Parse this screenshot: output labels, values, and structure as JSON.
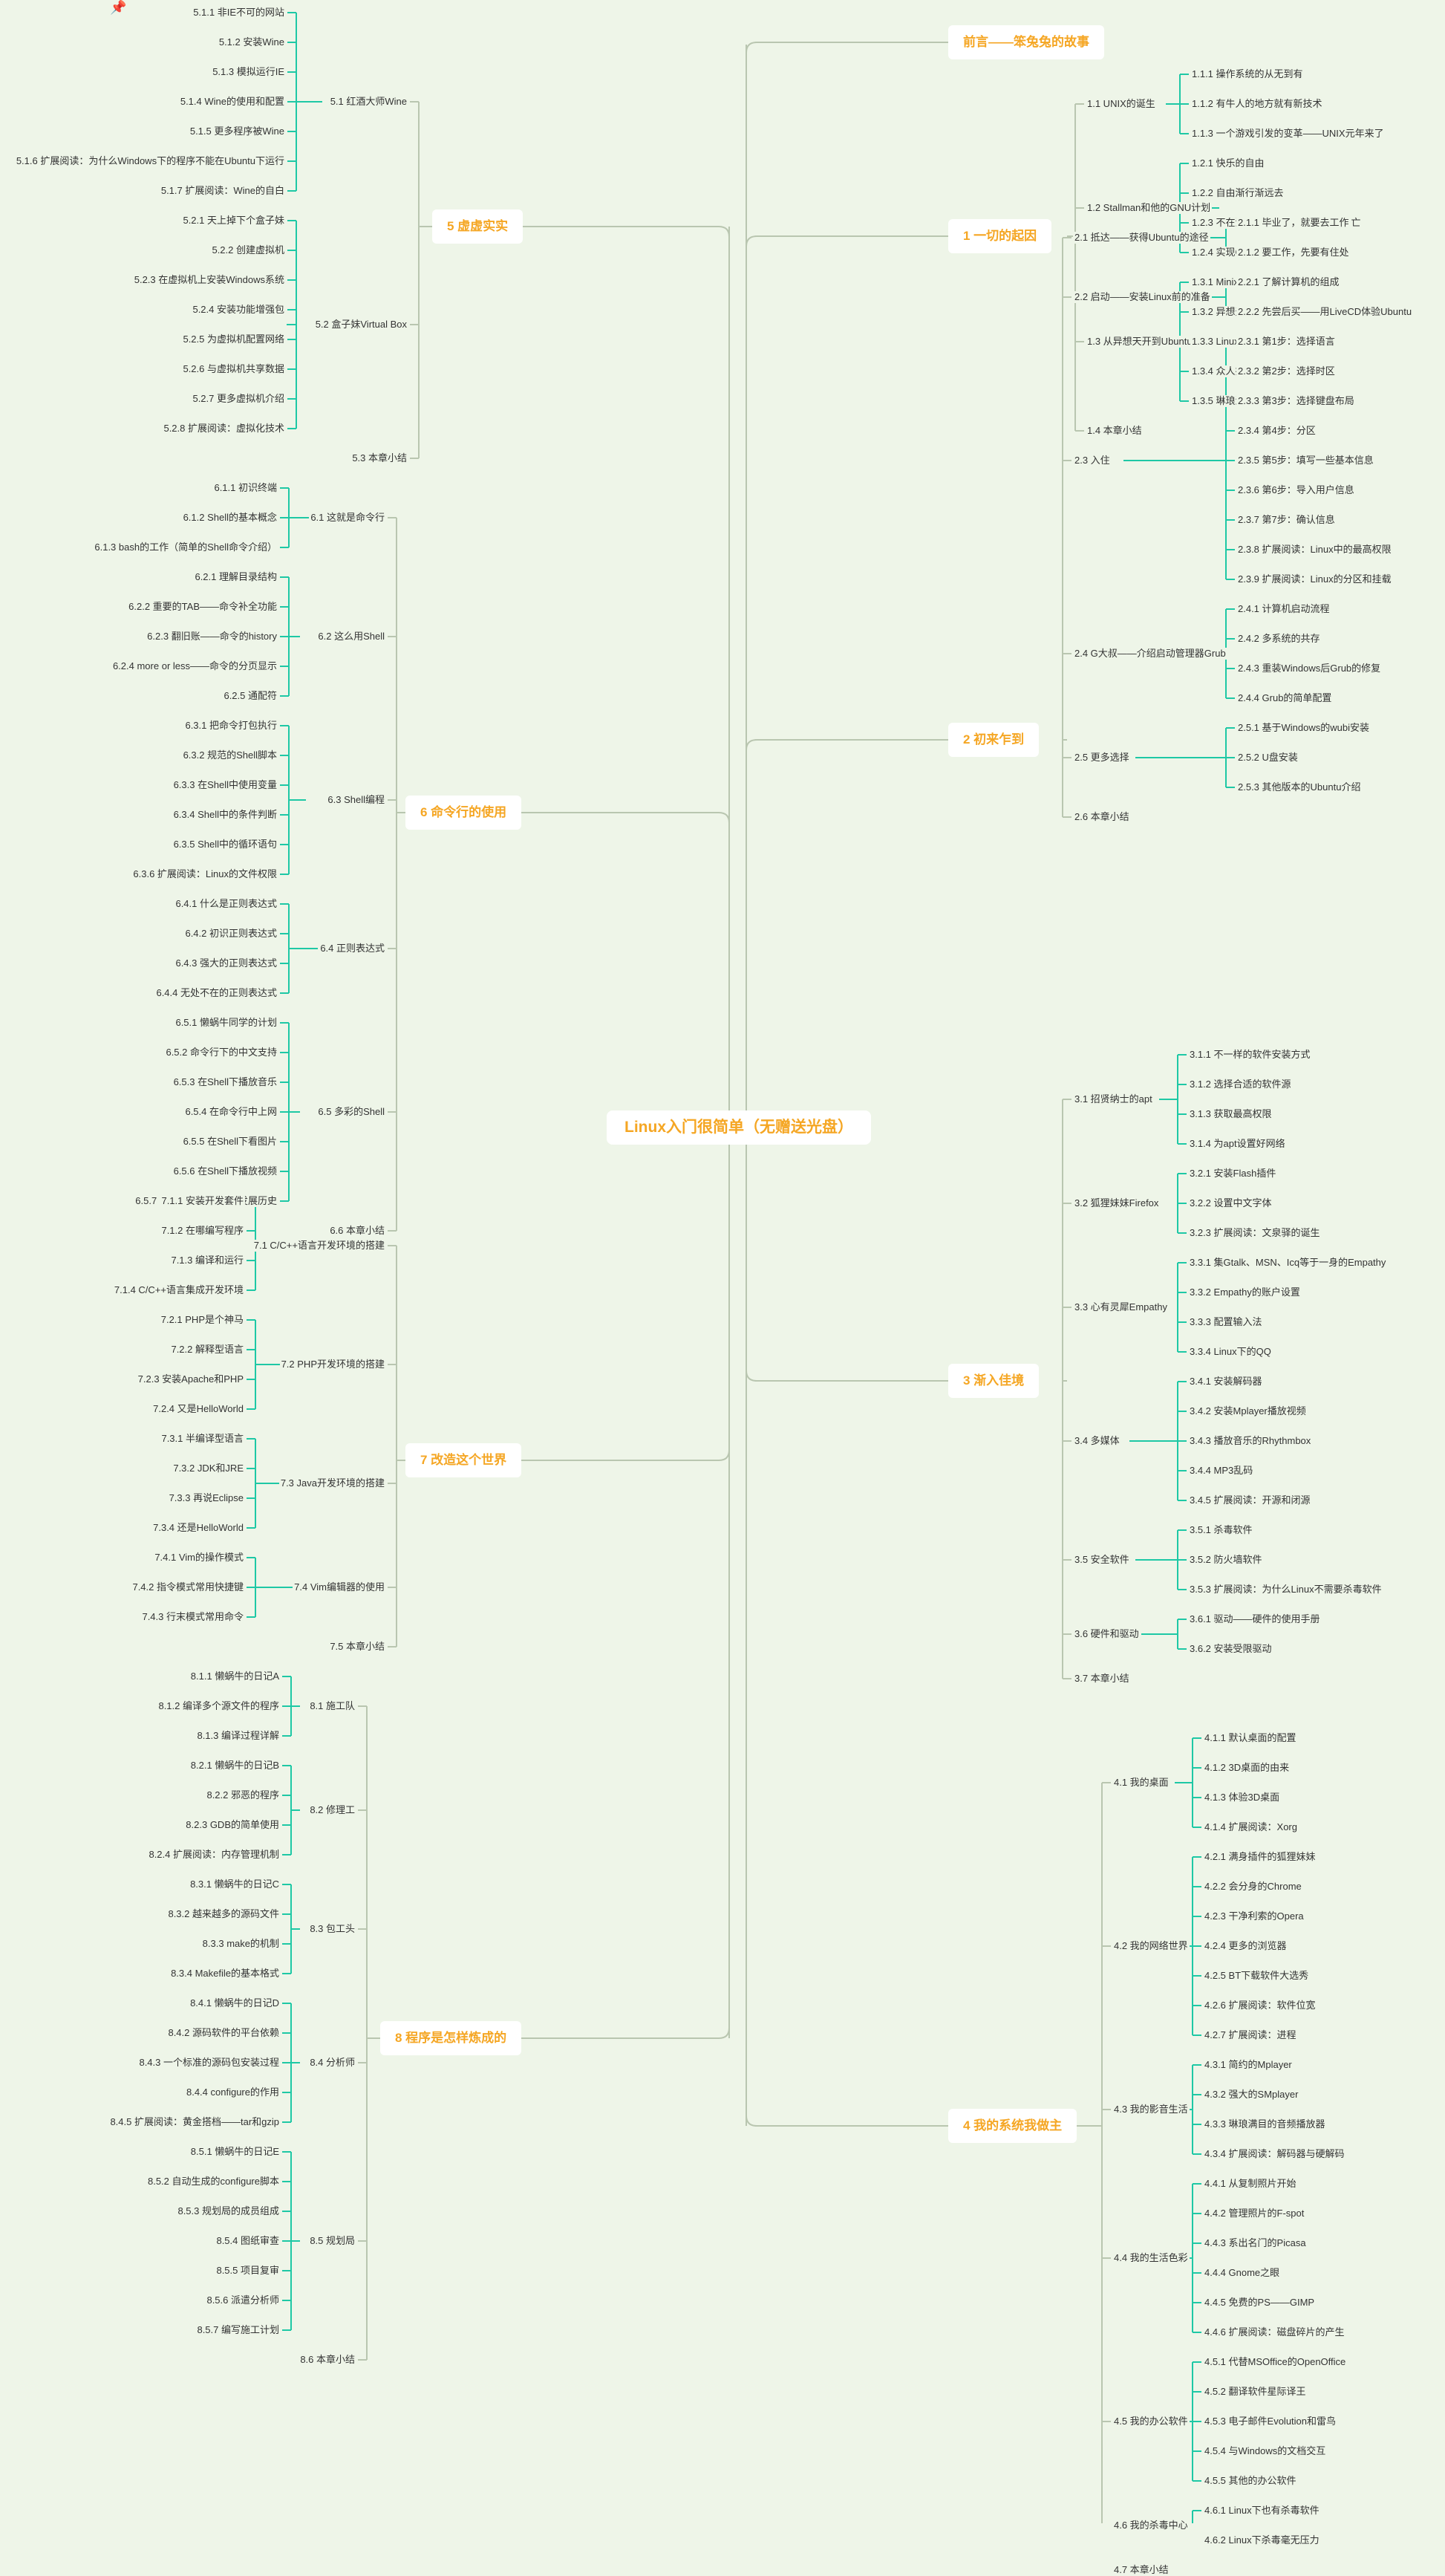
{
  "main_title": "Linux入门很简单（无赠送光盘）",
  "colors": {
    "line_main": "#b9c6b0",
    "branch": "#1ec8a5",
    "label": "#f5a623",
    "text": "#333333"
  },
  "icons": {
    "pin": "pushpin-icon"
  },
  "branches": [
    {
      "label": "前言——笨兔兔的故事",
      "side": "right",
      "children": []
    },
    {
      "label": "1 一切的起因",
      "side": "right",
      "children": [
        {
          "label": "1.1 UNIX的诞生",
          "children": [
            "1.1.1 操作系统的从无到有",
            "1.1.2 有牛人的地方就有新技术",
            "1.1.3 一个游戏引发的变革——UNIX元年来了"
          ]
        },
        {
          "label": "1.2 Stallman和他的GNU计划",
          "children": [
            "1.2.1 快乐的自由",
            "1.2.2 自由渐行渐远去",
            "1.2.3 不在沉默中爆发，就在沉默中灭亡",
            "1.2.4 实现GNU梦想"
          ]
        },
        {
          "label": "1.3 从异想天开到Ubuntu",
          "children": [
            "1.3.1 Minix",
            "1.3.2 异想天开的FREAX",
            "1.3.3 Linux的由来",
            "1.3.4 众人拾柴造就Linux",
            "1.3.5 琳琅满目的Linux"
          ]
        },
        {
          "label": "1.4 本章小结",
          "children": []
        }
      ]
    },
    {
      "label": "2 初来乍到",
      "side": "right",
      "children": [
        {
          "label": "2.1 抵达——获得Ubuntu的途径",
          "children": [
            "2.1.1 毕业了，就要去工作",
            "2.1.2 要工作，先要有住处"
          ]
        },
        {
          "label": "2.2 启动——安装Linux前的准备",
          "children": [
            "2.2.1 了解计算机的组成",
            "2.2.2 先尝后买——用LiveCD体验Ubuntu"
          ]
        },
        {
          "label": "2.3 入住",
          "children": [
            "2.3.1 第1步：选择语言",
            "2.3.2 第2步：选择时区",
            "2.3.3 第3步：选择键盘布局",
            "2.3.4 第4步：分区",
            "2.3.5 第5步：填写一些基本信息",
            "2.3.6 第6步：导入用户信息",
            "2.3.7 第7步：确认信息",
            "2.3.8 扩展阅读：Linux中的最高权限",
            "2.3.9 扩展阅读：Linux的分区和挂载"
          ]
        },
        {
          "label": "2.4 G大叔——介绍启动管理器Grub",
          "children": [
            "2.4.1 计算机启动流程",
            "2.4.2 多系统的共存",
            "2.4.3 重装Windows后Grub的修复",
            "2.4.4 Grub的简单配置"
          ]
        },
        {
          "label": "2.5 更多选择",
          "children": [
            "2.5.1 基于Windows的wubi安装",
            "2.5.2 U盘安装",
            "2.5.3 其他版本的Ubuntu介绍"
          ]
        },
        {
          "label": "2.6 本章小结",
          "children": []
        }
      ]
    },
    {
      "label": "3 渐入佳境",
      "side": "right",
      "children": [
        {
          "label": "3.1 招贤纳士的apt",
          "children": [
            "3.1.1 不一样的软件安装方式",
            "3.1.2 选择合适的软件源",
            "3.1.3 获取最高权限",
            "3.1.4 为apt设置好网络"
          ]
        },
        {
          "label": "3.2 狐狸妹妹Firefox",
          "children": [
            "3.2.1 安装Flash插件",
            "3.2.2 设置中文字体",
            "3.2.3 扩展阅读：文泉驿的诞生"
          ]
        },
        {
          "label": "3.3 心有灵犀Empathy",
          "children": [
            "3.3.1 集Gtalk、MSN、Icq等于一身的Empathy",
            "3.3.2 Empathy的账户设置",
            "3.3.3 配置输入法",
            "3.3.4 Linux下的QQ"
          ]
        },
        {
          "label": "3.4 多媒体",
          "children": [
            "3.4.1 安装解码器",
            "3.4.2 安装Mplayer播放视频",
            "3.4.3 播放音乐的Rhythmbox",
            "3.4.4 MP3乱码",
            "3.4.5 扩展阅读：开源和闭源"
          ]
        },
        {
          "label": "3.5 安全软件",
          "children": [
            "3.5.1 杀毒软件",
            "3.5.2 防火墙软件",
            "3.5.3 扩展阅读：为什么Linux不需要杀毒软件"
          ]
        },
        {
          "label": "3.6 硬件和驱动",
          "children": [
            "3.6.1 驱动——硬件的使用手册",
            "3.6.2 安装受限驱动"
          ]
        },
        {
          "label": "3.7 本章小结",
          "children": []
        }
      ]
    },
    {
      "label": "4 我的系统我做主",
      "side": "right",
      "children": [
        {
          "label": "4.1 我的桌面",
          "children": [
            "4.1.1 默认桌面的配置",
            "4.1.2 3D桌面的由来",
            "4.1.3 体验3D桌面",
            "4.1.4 扩展阅读：Xorg"
          ]
        },
        {
          "label": "4.2 我的网络世界",
          "children": [
            "4.2.1 满身插件的狐狸妹妹",
            "4.2.2 会分身的Chrome",
            "4.2.3 干净利索的Opera",
            "4.2.4 更多的浏览器",
            "4.2.5 BT下载软件大选秀",
            "4.2.6 扩展阅读：软件位宽",
            "4.2.7 扩展阅读：进程"
          ]
        },
        {
          "label": "4.3 我的影音生活",
          "children": [
            "4.3.1 简约的Mplayer",
            "4.3.2 强大的SMplayer",
            "4.3.3 琳琅满目的音频播放器",
            "4.3.4 扩展阅读：解码器与硬解码"
          ]
        },
        {
          "label": "4.4 我的生活色彩",
          "children": [
            "4.4.1 从复制照片开始",
            "4.4.2 管理照片的F-spot",
            "4.4.3 系出名门的Picasa",
            "4.4.4 Gnome之眼",
            "4.4.5 免费的PS——GIMP",
            "4.4.6 扩展阅读：磁盘碎片的产生"
          ]
        },
        {
          "label": "4.5 我的办公软件",
          "children": [
            "4.5.1 代替MSOffice的OpenOffice",
            "4.5.2 翻译软件星际译王",
            "4.5.3 电子邮件Evolution和雷鸟",
            "4.5.4 与Windows的文档交互",
            "4.5.5 其他的办公软件"
          ]
        },
        {
          "label": "4.6 我的杀毒中心",
          "children": [
            "4.6.1 Linux下也有杀毒软件",
            "4.6.2 Linux下杀毒毫无压力"
          ]
        },
        {
          "label": "4.7 本章小结",
          "children": []
        }
      ]
    },
    {
      "label": "5 虚虚实实",
      "side": "left",
      "children": [
        {
          "label": "5.1 红酒大师Wine",
          "children": [
            "5.1.1 非IE不可的网站",
            "5.1.2 安装Wine",
            "5.1.3 模拟运行IE",
            "5.1.4 Wine的使用和配置",
            "5.1.5 更多程序被Wine",
            "5.1.6 扩展阅读：为什么Windows下的程序不能在Ubuntu下运行",
            "5.1.7 扩展阅读：Wine的自白"
          ]
        },
        {
          "label": "5.2 盒子妹Virtual Box",
          "children": [
            "5.2.1 天上掉下个盒子妹",
            "5.2.2 创建虚拟机",
            "5.2.3 在虚拟机上安装Windows系统",
            "5.2.4 安装功能增强包",
            "5.2.5 为虚拟机配置网络",
            "5.2.6 与虚拟机共享数据",
            "5.2.7 更多虚拟机介绍",
            "5.2.8 扩展阅读：虚拟化技术"
          ]
        },
        {
          "label": "5.3 本章小结",
          "children": []
        }
      ]
    },
    {
      "label": "6 命令行的使用",
      "side": "left",
      "children": [
        {
          "label": "6.1 这就是命令行",
          "children": [
            "6.1.1 初识终端",
            "6.1.2 Shell的基本概念",
            "6.1.3 bash的工作（简单的Shell命令介绍）"
          ]
        },
        {
          "label": "6.2 这么用Shell",
          "children": [
            "6.2.1 理解目录结构",
            "6.2.2 重要的TAB——命令补全功能",
            "6.2.3 翻旧账——命令的history",
            "6.2.4 more or less——命令的分页显示",
            "6.2.5 通配符"
          ]
        },
        {
          "label": "6.3 Shell编程",
          "children": [
            "6.3.1 把命令打包执行",
            "6.3.2 规范的Shell脚本",
            "6.3.3 在Shell中使用变量",
            "6.3.4 Shell中的条件判断",
            "6.3.5 Shell中的循环语句",
            "6.3.6 扩展阅读：Linux的文件权限"
          ]
        },
        {
          "label": "6.4 正则表达式",
          "children": [
            "6.4.1 什么是正则表达式",
            "6.4.2 初识正则表达式",
            "6.4.3 强大的正则表达式",
            "6.4.4 无处不在的正则表达式"
          ]
        },
        {
          "label": "6.5 多彩的Shell",
          "children": [
            "6.5.1 懒蜗牛同学的计划",
            "6.5.2 命令行下的中文支持",
            "6.5.3 在Shell下播放音乐",
            "6.5.4 在命令行中上网",
            "6.5.5 在Shell下看图片",
            "6.5.6 在Shell下播放视频",
            "6.5.7 扩展阅读：bash的发展历史"
          ]
        },
        {
          "label": "6.6 本章小结",
          "children": []
        }
      ]
    },
    {
      "label": "7 改造这个世界",
      "side": "left",
      "children": [
        {
          "label": "7.1 C/C++语言开发环境的搭建",
          "children": [
            "7.1.1 安装开发套件",
            "7.1.2 在哪编写程序",
            "7.1.3 编译和运行",
            "7.1.4 C/C++语言集成开发环境"
          ]
        },
        {
          "label": "7.2 PHP开发环境的搭建",
          "children": [
            "7.2.1 PHP是个神马",
            "7.2.2 解释型语言",
            "7.2.3 安装Apache和PHP",
            "7.2.4 又是HelloWorld"
          ]
        },
        {
          "label": "7.3 Java开发环境的搭建",
          "children": [
            "7.3.1 半编译型语言",
            "7.3.2 JDK和JRE",
            "7.3.3 再说Eclipse",
            "7.3.4 还是HelloWorld"
          ]
        },
        {
          "label": "7.4 Vim编辑器的使用",
          "children": [
            "7.4.1 Vim的操作模式",
            "7.4.2 指令模式常用快捷键",
            "7.4.3 行末模式常用命令"
          ]
        },
        {
          "label": "7.5 本章小结",
          "children": []
        }
      ]
    },
    {
      "label": "8 程序是怎样炼成的",
      "side": "left",
      "children": [
        {
          "label": "8.1 施工队",
          "children": [
            "8.1.1 懒蜗牛的日记A",
            "8.1.2 编译多个源文件的程序",
            "8.1.3 编译过程详解"
          ]
        },
        {
          "label": "8.2 修理工",
          "children": [
            "8.2.1 懒蜗牛的日记B",
            "8.2.2 邪恶的程序",
            "8.2.3 GDB的简单使用",
            "8.2.4 扩展阅读：内存管理机制"
          ]
        },
        {
          "label": "8.3 包工头",
          "children": [
            "8.3.1 懒蜗牛的日记C",
            "8.3.2 越来越多的源码文件",
            "8.3.3 make的机制",
            "8.3.4 Makefile的基本格式"
          ]
        },
        {
          "label": "8.4 分析师",
          "children": [
            "8.4.1 懒蜗牛的日记D",
            "8.4.2 源码软件的平台依赖",
            "8.4.3 一个标准的源码包安装过程",
            "8.4.4 configure的作用",
            "8.4.5 扩展阅读：黄金搭档——tar和gzip"
          ]
        },
        {
          "label": "8.5 规划局",
          "children": [
            "8.5.1 懒蜗牛的日记E",
            "8.5.2 自动生成的configure脚本",
            "8.5.3 规划局的成员组成",
            "8.5.4 图纸审查",
            "8.5.5 项目复审",
            "8.5.6 派遣分析师",
            "8.5.7 编写施工计划"
          ]
        },
        {
          "label": "8.6 本章小结",
          "children": []
        }
      ]
    }
  ]
}
